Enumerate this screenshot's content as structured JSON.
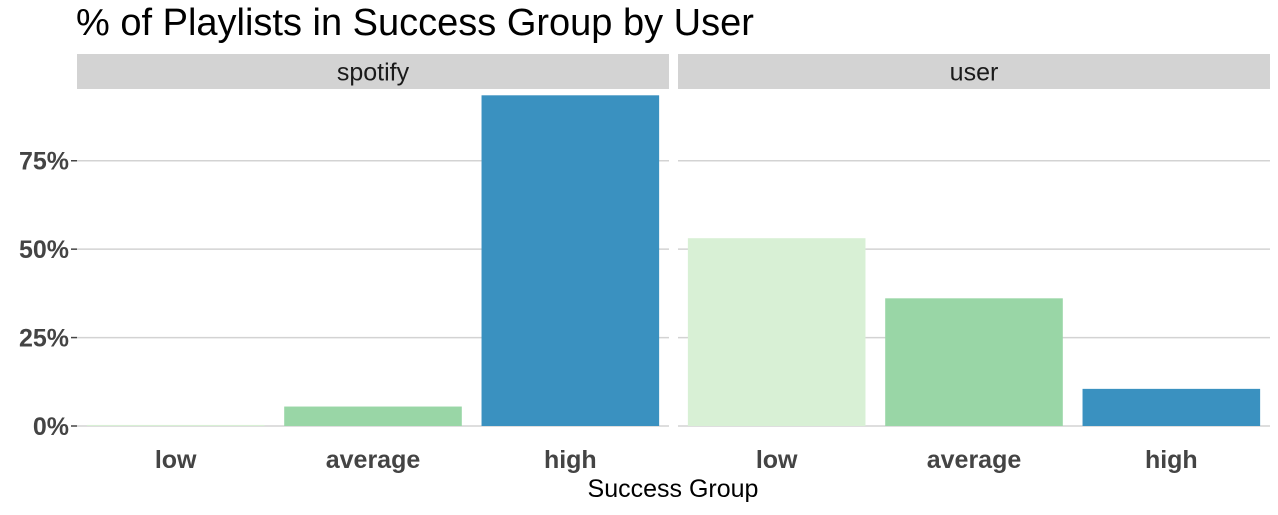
{
  "chart_data": {
    "type": "bar",
    "title": "% of Playlists in Success Group by User",
    "xlabel": "Success Group",
    "ylabel": "",
    "ylim": [
      0,
      95
    ],
    "yticks": [
      0,
      25,
      50,
      75
    ],
    "ytick_labels": [
      "0%",
      "25%",
      "50%",
      "75%"
    ],
    "categories": [
      "low",
      "average",
      "high"
    ],
    "category_colors": [
      "#d8f0d5",
      "#99d6a6",
      "#3a91c0"
    ],
    "grid": true,
    "legend": "none",
    "panels": [
      {
        "name": "spotify",
        "values": [
          0.3,
          5.5,
          93.5
        ]
      },
      {
        "name": "user",
        "values": [
          53.1,
          36.1,
          10.5
        ]
      }
    ]
  }
}
